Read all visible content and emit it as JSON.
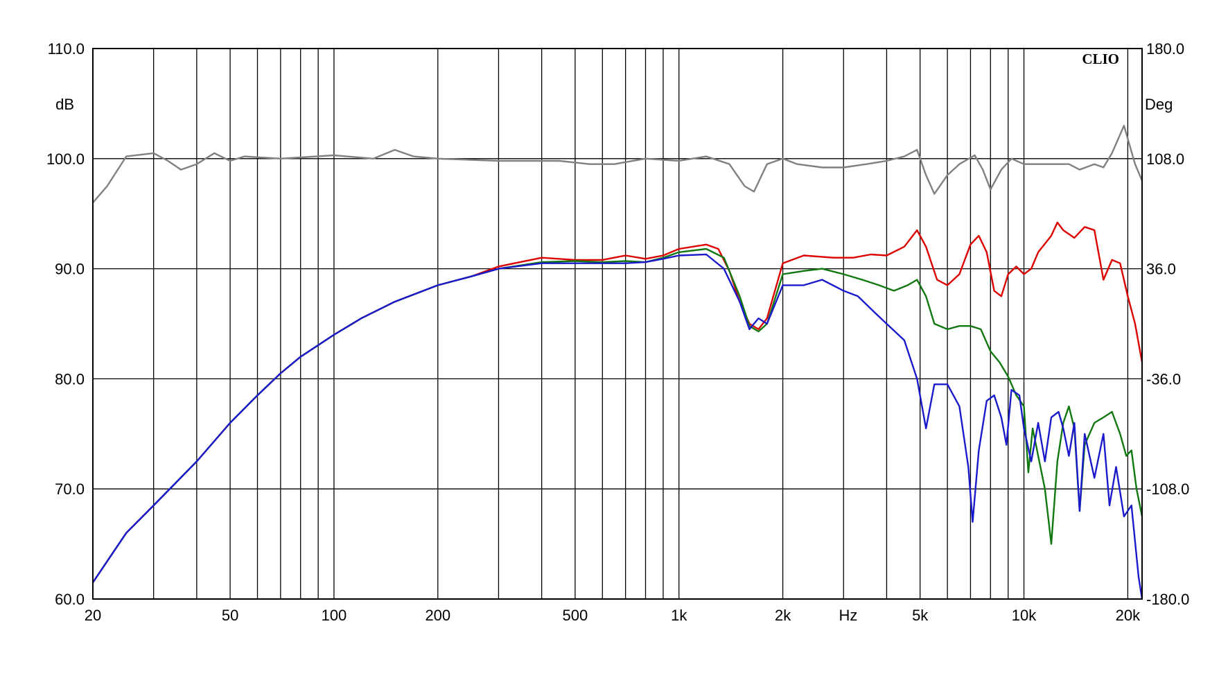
{
  "chart_data": {
    "type": "line",
    "watermark": "CLIO",
    "x_scale": "log",
    "xlim": [
      20,
      22000
    ],
    "ylim": [
      60,
      110
    ],
    "y2lim": [
      -180,
      180
    ],
    "grid": true,
    "legend": "none",
    "y_left_label": "dB",
    "y_right_label": "Deg",
    "x_unit_label": "Hz",
    "x_ticks": [
      {
        "value": 20,
        "label": "20"
      },
      {
        "value": 50,
        "label": "50"
      },
      {
        "value": 100,
        "label": "100"
      },
      {
        "value": 200,
        "label": "200"
      },
      {
        "value": 500,
        "label": "500"
      },
      {
        "value": 1000,
        "label": "1k"
      },
      {
        "value": 2000,
        "label": "2k"
      },
      {
        "value": 5000,
        "label": "5k"
      },
      {
        "value": 10000,
        "label": "10k"
      },
      {
        "value": 20000,
        "label": "20k"
      }
    ],
    "y_ticks": [
      {
        "value": 60,
        "label": "60.0"
      },
      {
        "value": 70,
        "label": "70.0"
      },
      {
        "value": 80,
        "label": "80.0"
      },
      {
        "value": 90,
        "label": "90.0"
      },
      {
        "value": 100,
        "label": "100.0"
      },
      {
        "value": 110,
        "label": "110.0"
      }
    ],
    "y2_ticks": [
      {
        "value": -180,
        "label": "-180.0"
      },
      {
        "value": -108,
        "label": "-108.0"
      },
      {
        "value": -36,
        "label": "-36.0"
      },
      {
        "value": 36,
        "label": "36.0"
      },
      {
        "value": 108,
        "label": "108.0"
      },
      {
        "value": 180,
        "label": "180.0"
      }
    ],
    "series": [
      {
        "color": "#808080",
        "points": [
          [
            20,
            96
          ],
          [
            22,
            97.5
          ],
          [
            25,
            100.2
          ],
          [
            30,
            100.5
          ],
          [
            33,
            99.8
          ],
          [
            36,
            99
          ],
          [
            40,
            99.5
          ],
          [
            45,
            100.5
          ],
          [
            50,
            99.8
          ],
          [
            55,
            100.2
          ],
          [
            70,
            100
          ],
          [
            100,
            100.3
          ],
          [
            130,
            100
          ],
          [
            150,
            100.8
          ],
          [
            170,
            100.2
          ],
          [
            200,
            100
          ],
          [
            300,
            99.8
          ],
          [
            450,
            99.8
          ],
          [
            550,
            99.5
          ],
          [
            650,
            99.5
          ],
          [
            800,
            100
          ],
          [
            1000,
            99.8
          ],
          [
            1200,
            100.2
          ],
          [
            1400,
            99.5
          ],
          [
            1550,
            97.5
          ],
          [
            1650,
            97
          ],
          [
            1800,
            99.5
          ],
          [
            2000,
            100
          ],
          [
            2200,
            99.5
          ],
          [
            2600,
            99.2
          ],
          [
            3000,
            99.2
          ],
          [
            3500,
            99.5
          ],
          [
            4000,
            99.8
          ],
          [
            4500,
            100.2
          ],
          [
            4900,
            100.8
          ],
          [
            5200,
            98.5
          ],
          [
            5500,
            96.8
          ],
          [
            6000,
            98.5
          ],
          [
            6500,
            99.5
          ],
          [
            7200,
            100.3
          ],
          [
            7600,
            99
          ],
          [
            8000,
            97.2
          ],
          [
            8600,
            99
          ],
          [
            9200,
            100
          ],
          [
            10000,
            99.5
          ],
          [
            11000,
            99.5
          ],
          [
            12000,
            99.5
          ],
          [
            13500,
            99.5
          ],
          [
            14500,
            99
          ],
          [
            16000,
            99.5
          ],
          [
            17000,
            99.2
          ],
          [
            18000,
            100.5
          ],
          [
            19500,
            103
          ],
          [
            21000,
            99.5
          ],
          [
            22000,
            98
          ]
        ]
      },
      {
        "color": "#dd0000",
        "points": [
          [
            20,
            61.5
          ],
          [
            25,
            66
          ],
          [
            30,
            68.5
          ],
          [
            40,
            72.5
          ],
          [
            50,
            76
          ],
          [
            60,
            78.5
          ],
          [
            70,
            80.5
          ],
          [
            80,
            82
          ],
          [
            100,
            84
          ],
          [
            120,
            85.5
          ],
          [
            150,
            87
          ],
          [
            200,
            88.5
          ],
          [
            250,
            89.3
          ],
          [
            300,
            90.2
          ],
          [
            400,
            91
          ],
          [
            500,
            90.8
          ],
          [
            600,
            90.8
          ],
          [
            700,
            91.2
          ],
          [
            800,
            90.9
          ],
          [
            900,
            91.2
          ],
          [
            1000,
            91.8
          ],
          [
            1200,
            92.2
          ],
          [
            1300,
            91.8
          ],
          [
            1400,
            89.8
          ],
          [
            1500,
            87
          ],
          [
            1600,
            85
          ],
          [
            1700,
            84.5
          ],
          [
            1800,
            85.5
          ],
          [
            2000,
            90.5
          ],
          [
            2300,
            91.2
          ],
          [
            2800,
            91
          ],
          [
            3200,
            91
          ],
          [
            3600,
            91.3
          ],
          [
            4000,
            91.2
          ],
          [
            4500,
            92
          ],
          [
            4900,
            93.5
          ],
          [
            5200,
            92
          ],
          [
            5600,
            89
          ],
          [
            6000,
            88.5
          ],
          [
            6500,
            89.5
          ],
          [
            7000,
            92.2
          ],
          [
            7400,
            93
          ],
          [
            7800,
            91.5
          ],
          [
            8200,
            88
          ],
          [
            8600,
            87.5
          ],
          [
            9000,
            89.5
          ],
          [
            9500,
            90.2
          ],
          [
            10000,
            89.5
          ],
          [
            10500,
            90
          ],
          [
            11000,
            91.5
          ],
          [
            12000,
            93
          ],
          [
            12500,
            94.2
          ],
          [
            13000,
            93.5
          ],
          [
            14000,
            92.8
          ],
          [
            15000,
            93.8
          ],
          [
            16000,
            93.5
          ],
          [
            17000,
            89
          ],
          [
            18000,
            90.8
          ],
          [
            19000,
            90.5
          ],
          [
            20000,
            87.5
          ],
          [
            21000,
            85
          ],
          [
            22000,
            81.5
          ]
        ]
      },
      {
        "color": "#117711",
        "points": [
          [
            20,
            61.5
          ],
          [
            25,
            66
          ],
          [
            30,
            68.5
          ],
          [
            40,
            72.5
          ],
          [
            50,
            76
          ],
          [
            60,
            78.5
          ],
          [
            70,
            80.5
          ],
          [
            80,
            82
          ],
          [
            100,
            84
          ],
          [
            120,
            85.5
          ],
          [
            150,
            87
          ],
          [
            200,
            88.5
          ],
          [
            250,
            89.3
          ],
          [
            300,
            90
          ],
          [
            400,
            90.6
          ],
          [
            500,
            90.7
          ],
          [
            600,
            90.6
          ],
          [
            700,
            90.7
          ],
          [
            800,
            90.6
          ],
          [
            900,
            91
          ],
          [
            1000,
            91.5
          ],
          [
            1200,
            91.8
          ],
          [
            1350,
            91
          ],
          [
            1500,
            87.5
          ],
          [
            1600,
            84.8
          ],
          [
            1700,
            84.3
          ],
          [
            1800,
            85
          ],
          [
            2000,
            89.5
          ],
          [
            2300,
            89.8
          ],
          [
            2600,
            90
          ],
          [
            3000,
            89.5
          ],
          [
            3400,
            89
          ],
          [
            3800,
            88.5
          ],
          [
            4200,
            88
          ],
          [
            4600,
            88.5
          ],
          [
            4900,
            89
          ],
          [
            5200,
            87.5
          ],
          [
            5500,
            85
          ],
          [
            6000,
            84.5
          ],
          [
            6500,
            84.8
          ],
          [
            7000,
            84.8
          ],
          [
            7500,
            84.5
          ],
          [
            8000,
            82.5
          ],
          [
            8500,
            81.5
          ],
          [
            9000,
            80.2
          ],
          [
            9500,
            78.5
          ],
          [
            10000,
            77.5
          ],
          [
            10300,
            71.5
          ],
          [
            10600,
            75.5
          ],
          [
            11000,
            73
          ],
          [
            11500,
            70
          ],
          [
            12000,
            65
          ],
          [
            12500,
            72.5
          ],
          [
            13000,
            76
          ],
          [
            13500,
            77.5
          ],
          [
            14000,
            75.5
          ],
          [
            14500,
            68
          ],
          [
            15000,
            74
          ],
          [
            16000,
            76
          ],
          [
            17000,
            76.5
          ],
          [
            18000,
            77
          ],
          [
            19000,
            75
          ],
          [
            19800,
            73
          ],
          [
            20500,
            73.5
          ],
          [
            21200,
            70
          ],
          [
            22000,
            67.5
          ]
        ]
      },
      {
        "color": "#1a1acc",
        "points": [
          [
            20,
            61.5
          ],
          [
            25,
            66
          ],
          [
            30,
            68.5
          ],
          [
            40,
            72.5
          ],
          [
            50,
            76
          ],
          [
            60,
            78.5
          ],
          [
            70,
            80.5
          ],
          [
            80,
            82
          ],
          [
            100,
            84
          ],
          [
            120,
            85.5
          ],
          [
            150,
            87
          ],
          [
            200,
            88.5
          ],
          [
            250,
            89.3
          ],
          [
            300,
            90
          ],
          [
            400,
            90.5
          ],
          [
            500,
            90.5
          ],
          [
            600,
            90.5
          ],
          [
            700,
            90.5
          ],
          [
            800,
            90.6
          ],
          [
            900,
            90.9
          ],
          [
            1000,
            91.2
          ],
          [
            1200,
            91.3
          ],
          [
            1350,
            90
          ],
          [
            1500,
            87
          ],
          [
            1600,
            84.5
          ],
          [
            1700,
            85.5
          ],
          [
            1800,
            85
          ],
          [
            2000,
            88.5
          ],
          [
            2300,
            88.5
          ],
          [
            2600,
            89
          ],
          [
            3000,
            88
          ],
          [
            3300,
            87.5
          ],
          [
            3700,
            86
          ],
          [
            4000,
            85
          ],
          [
            4500,
            83.5
          ],
          [
            4900,
            80
          ],
          [
            5200,
            75.5
          ],
          [
            5500,
            79.5
          ],
          [
            6000,
            79.5
          ],
          [
            6500,
            77.5
          ],
          [
            6900,
            72
          ],
          [
            7100,
            67
          ],
          [
            7400,
            73.5
          ],
          [
            7800,
            78
          ],
          [
            8200,
            78.5
          ],
          [
            8600,
            76.5
          ],
          [
            8900,
            74
          ],
          [
            9200,
            79
          ],
          [
            9700,
            78.5
          ],
          [
            10000,
            75.5
          ],
          [
            10500,
            72.5
          ],
          [
            11000,
            76
          ],
          [
            11500,
            72.5
          ],
          [
            12000,
            76.5
          ],
          [
            12600,
            77
          ],
          [
            13000,
            75.5
          ],
          [
            13500,
            73
          ],
          [
            14000,
            76
          ],
          [
            14500,
            68
          ],
          [
            15000,
            75
          ],
          [
            16000,
            71
          ],
          [
            17000,
            75
          ],
          [
            17700,
            68.5
          ],
          [
            18500,
            72
          ],
          [
            19500,
            67.5
          ],
          [
            20500,
            68.5
          ],
          [
            21500,
            62
          ],
          [
            22000,
            60
          ]
        ]
      }
    ]
  }
}
